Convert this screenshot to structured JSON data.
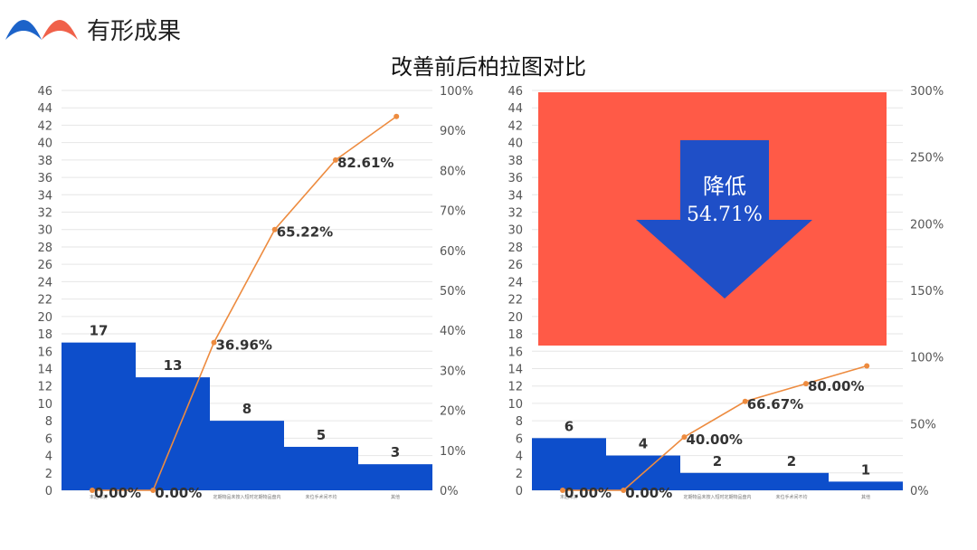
{
  "header": {
    "title": "有形成果"
  },
  "main_title": "改善前后柏拉图对比",
  "colors": {
    "bar": "#0d4ecb",
    "line": "#ed8b3f",
    "overlay": "#ff5a47",
    "arrow": "#1f4fc7",
    "logo_left": "#1c63c9",
    "logo_right": "#f0614a"
  },
  "callout": {
    "line1": "降低",
    "line2": "54.71%"
  },
  "chart_data": [
    {
      "type": "bar",
      "title": "",
      "categories": [
        "末后未折",
        "",
        "定期物品未按入短时定期物品盘内",
        "未位手术间不均",
        "其他"
      ],
      "values": [
        17,
        13,
        8,
        5,
        3
      ],
      "value_labels": [
        "17",
        "13",
        "8",
        "5",
        "3"
      ],
      "ylim": [
        0,
        46
      ],
      "y_ticks": [
        "0",
        "2",
        "4",
        "6",
        "8",
        "10",
        "12",
        "14",
        "16",
        "18",
        "20",
        "22",
        "24",
        "26",
        "28",
        "30",
        "32",
        "34",
        "36",
        "38",
        "40",
        "42",
        "44",
        "46"
      ],
      "y2_ticks": [
        "0%",
        "10%",
        "20%",
        "30%",
        "40%",
        "50%",
        "60%",
        "70%",
        "80%",
        "90%",
        "100%"
      ],
      "y2lim": [
        0,
        100
      ],
      "line": {
        "values": [
          0,
          0,
          36.96,
          65.22,
          82.61,
          93.5
        ],
        "labels": [
          "0.00%",
          "0.00%",
          "36.96%",
          "65.22%",
          "82.61%",
          ""
        ]
      }
    },
    {
      "type": "bar",
      "title": "",
      "categories": [
        "末后未折",
        "",
        "定期物品未按入短时定期物品盘内",
        "未位手术间不均",
        "其他"
      ],
      "values": [
        6,
        4,
        2,
        2,
        1
      ],
      "value_labels": [
        "6",
        "4",
        "2",
        "2",
        "1"
      ],
      "ylim": [
        0,
        46
      ],
      "y_ticks": [
        "0",
        "2",
        "4",
        "6",
        "8",
        "10",
        "12",
        "14",
        "16",
        "18",
        "20",
        "22",
        "24",
        "26",
        "28",
        "30",
        "32",
        "34",
        "36",
        "38",
        "40",
        "42",
        "44",
        "46"
      ],
      "y2_ticks": [
        "0%",
        "50%",
        "100%",
        "150%",
        "200%",
        "250%",
        "300%"
      ],
      "y2lim": [
        0,
        300
      ],
      "line": {
        "values": [
          0,
          0,
          40.0,
          66.67,
          80.0,
          93.3
        ],
        "labels": [
          "0.00%",
          "0.00%",
          "40.00%",
          "66.67%",
          "80.00%",
          ""
        ]
      }
    }
  ]
}
